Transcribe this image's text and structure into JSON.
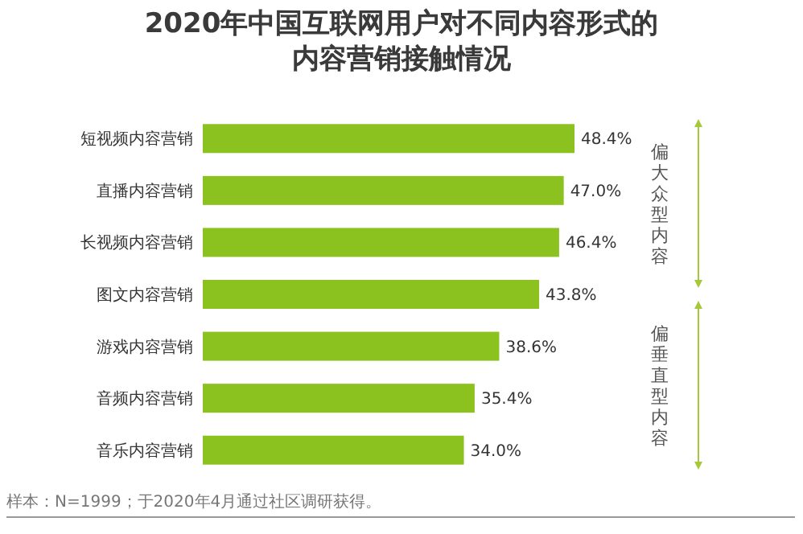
{
  "chart_data": {
    "type": "bar",
    "orientation": "horizontal",
    "title": "2020年中国互联网用户对不同内容形式的内容营销接触情况",
    "categories": [
      "短视频内容营销",
      "直播内容营销",
      "长视频内容营销",
      "图文内容营销",
      "游戏内容营销",
      "音频内容营销",
      "音乐内容营销"
    ],
    "values": [
      48.4,
      47.0,
      46.4,
      43.8,
      38.6,
      35.4,
      34.0
    ],
    "value_labels": [
      "48.4%",
      "47.0%",
      "46.4%",
      "43.8%",
      "38.6%",
      "35.4%",
      "34.0%"
    ],
    "color": "#8cc21f",
    "annotations": [
      "偏大众型内容",
      "偏垂直型内容",
      "样本：N=1999；于2020年4月通过社区调研获得。"
    ]
  }
}
